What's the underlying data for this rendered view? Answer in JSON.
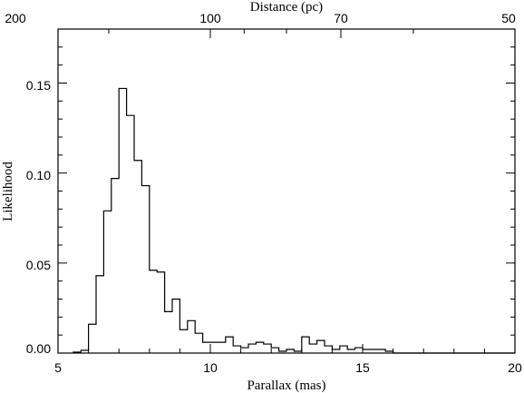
{
  "chart_data": {
    "type": "bar",
    "style": "step-histogram",
    "xlabel": "Parallax (mas)",
    "ylabel": "Likelihood",
    "top_label": "Distance (pc)",
    "xlim": [
      5,
      20
    ],
    "ylim": [
      0,
      0.18
    ],
    "x_ticks": [
      "5",
      "10",
      "15",
      "20"
    ],
    "y_ticks": [
      "0.00",
      "0.05",
      "0.10",
      "0.15"
    ],
    "top_ticks": [
      "200",
      "100",
      "70",
      "50"
    ],
    "bin_width": 0.25,
    "bin_starts": [
      5.5,
      5.75,
      6.0,
      6.25,
      6.5,
      6.75,
      7.0,
      7.25,
      7.5,
      7.75,
      8.0,
      8.25,
      8.5,
      8.75,
      9.0,
      9.25,
      9.5,
      9.75,
      10.0,
      10.25,
      10.5,
      10.75,
      11.0,
      11.25,
      11.5,
      11.75,
      12.0,
      12.25,
      12.5,
      12.75,
      13.0,
      13.25,
      13.5,
      13.75,
      14.0,
      14.25,
      14.5,
      14.75,
      15.0,
      15.25,
      15.5,
      15.75
    ],
    "values": [
      0.0005,
      0.0015,
      0.016,
      0.043,
      0.079,
      0.097,
      0.147,
      0.132,
      0.107,
      0.093,
      0.046,
      0.045,
      0.023,
      0.03,
      0.013,
      0.018,
      0.011,
      0.006,
      0.006,
      0.006,
      0.009,
      0.004,
      0.003,
      0.005,
      0.006,
      0.005,
      0.003,
      0.001,
      0.002,
      0.001,
      0.009,
      0.005,
      0.007,
      0.004,
      0.002,
      0.004,
      0.002,
      0.003,
      0.002,
      0.002,
      0.002,
      0.001
    ]
  }
}
